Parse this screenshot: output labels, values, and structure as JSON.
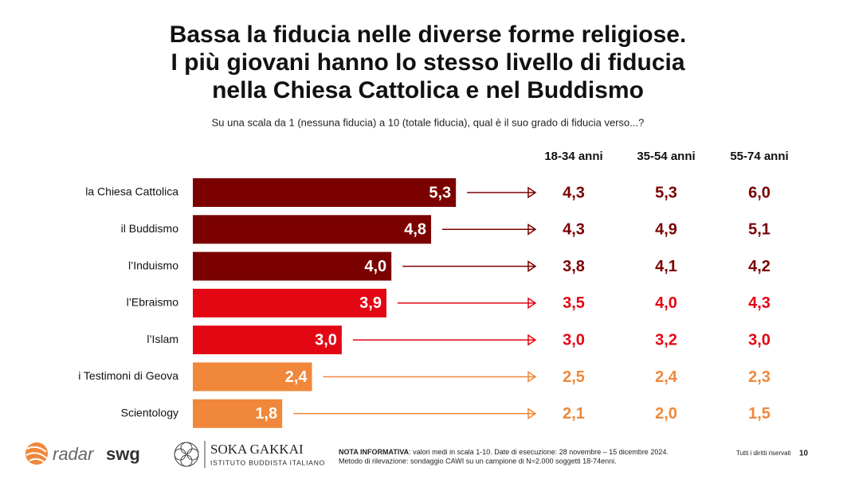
{
  "chart_data": {
    "type": "bar",
    "orientation": "horizontal",
    "title": [
      "Bassa la fiducia nelle diverse forme religiose.",
      "I più giovani hanno lo stesso livello di fiducia",
      "nella Chiesa Cattolica e nel Buddismo"
    ],
    "subtitle": "Su una scala da 1 (nessuna fiducia) a 10 (totale fiducia), qual è il suo grado di fiducia verso...?",
    "categories": [
      "la Chiesa Cattolica",
      "il Buddismo",
      "l’Induismo",
      "l’Ebraismo",
      "l’Islam",
      "i Testimoni di Geova",
      "Scientology"
    ],
    "values": [
      5.3,
      4.8,
      4.0,
      3.9,
      3.0,
      2.4,
      1.8
    ],
    "value_labels": [
      "5,3",
      "4,8",
      "4,0",
      "3,9",
      "3,0",
      "2,4",
      "1,8"
    ],
    "colors": [
      "#7b0000",
      "#7b0000",
      "#7b0000",
      "#e30613",
      "#e30613",
      "#f0873a",
      "#f0873a"
    ],
    "series": [
      {
        "name": "18-34 anni",
        "values": [
          4.3,
          4.3,
          3.8,
          3.5,
          3.0,
          2.5,
          2.1
        ],
        "value_labels": [
          "4,3",
          "4,3",
          "3,8",
          "3,5",
          "3,0",
          "2,5",
          "2,1"
        ]
      },
      {
        "name": "35-54 anni",
        "values": [
          5.3,
          4.9,
          4.1,
          4.0,
          3.2,
          2.4,
          2.0
        ],
        "value_labels": [
          "5,3",
          "4,9",
          "4,1",
          "4,0",
          "3,2",
          "2,4",
          "2,0"
        ]
      },
      {
        "name": "55-74 anni",
        "values": [
          6.0,
          5.1,
          4.2,
          4.3,
          3.0,
          2.3,
          1.5
        ],
        "value_labels": [
          "6,0",
          "5,1",
          "4,2",
          "4,3",
          "3,0",
          "2,3",
          "1,5"
        ]
      }
    ]
  },
  "footer": {
    "logo_radar": [
      "radar",
      "swg"
    ],
    "logo_soka": [
      "SOKA GAKKAI",
      "ISTITUTO BUDDISTA ITALIANO"
    ],
    "note_label": "NOTA INFORMATIVA",
    "note_text": ": valori medi in scala 1-10. Date di esecuzione: 28 novembre – 15 dicembre 2024.",
    "note_method": "Metodo di rilevazione: sondaggio CAWI su un campione di N=2.000 soggetti 18-74enni.",
    "rights": "Tutti i diritti riservati",
    "page": "10"
  }
}
